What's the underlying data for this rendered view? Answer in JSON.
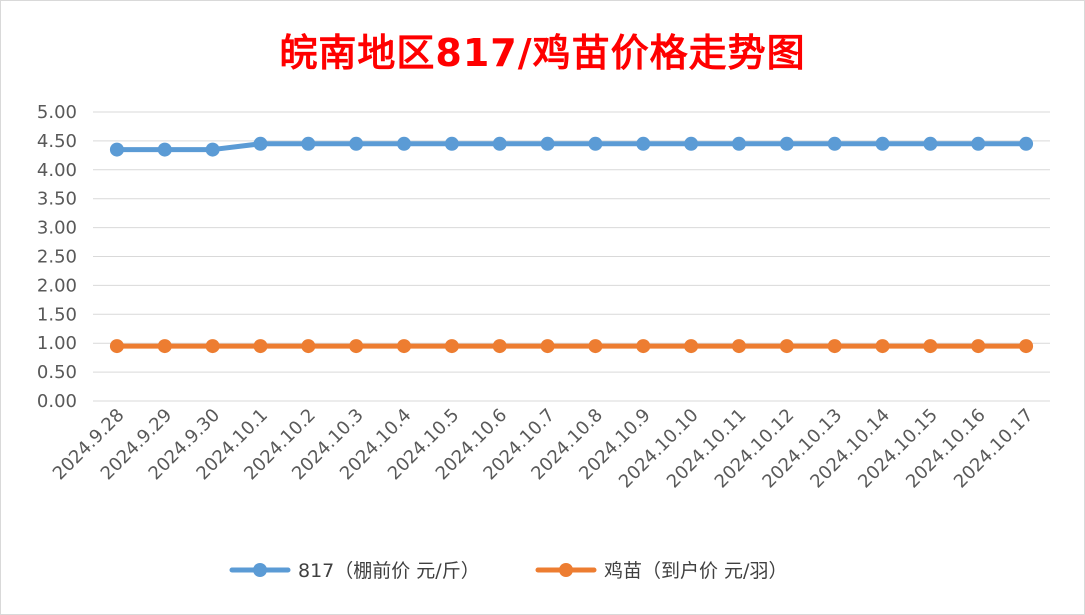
{
  "chart_data": {
    "type": "line",
    "title": "皖南地区817/鸡苗价格走势图",
    "categories": [
      "2024.9.28",
      "2024.9.29",
      "2024.9.30",
      "2024.10.1",
      "2024.10.2",
      "2024.10.3",
      "2024.10.4",
      "2024.10.5",
      "2024.10.6",
      "2024.10.7",
      "2024.10.8",
      "2024.10.9",
      "2024.10.10",
      "2024.10.11",
      "2024.10.12",
      "2024.10.13",
      "2024.10.14",
      "2024.10.15",
      "2024.10.16",
      "2024.10.17"
    ],
    "series": [
      {
        "name": "817（棚前价 元/斤）",
        "color": "#5b9bd5",
        "values": [
          4.35,
          4.35,
          4.35,
          4.45,
          4.45,
          4.45,
          4.45,
          4.45,
          4.45,
          4.45,
          4.45,
          4.45,
          4.45,
          4.45,
          4.45,
          4.45,
          4.45,
          4.45,
          4.45,
          4.45
        ]
      },
      {
        "name": "鸡苗（到户价 元/羽）",
        "color": "#ed7d31",
        "values": [
          0.95,
          0.95,
          0.95,
          0.95,
          0.95,
          0.95,
          0.95,
          0.95,
          0.95,
          0.95,
          0.95,
          0.95,
          0.95,
          0.95,
          0.95,
          0.95,
          0.95,
          0.95,
          0.95,
          0.95
        ]
      }
    ],
    "yticks": [
      "0.00",
      "0.50",
      "1.00",
      "1.50",
      "2.00",
      "2.50",
      "3.00",
      "3.50",
      "4.00",
      "4.50",
      "5.00"
    ],
    "ylim": [
      0,
      5
    ],
    "grid": true,
    "legend_position": "bottom",
    "title_color": "#ff0000"
  }
}
